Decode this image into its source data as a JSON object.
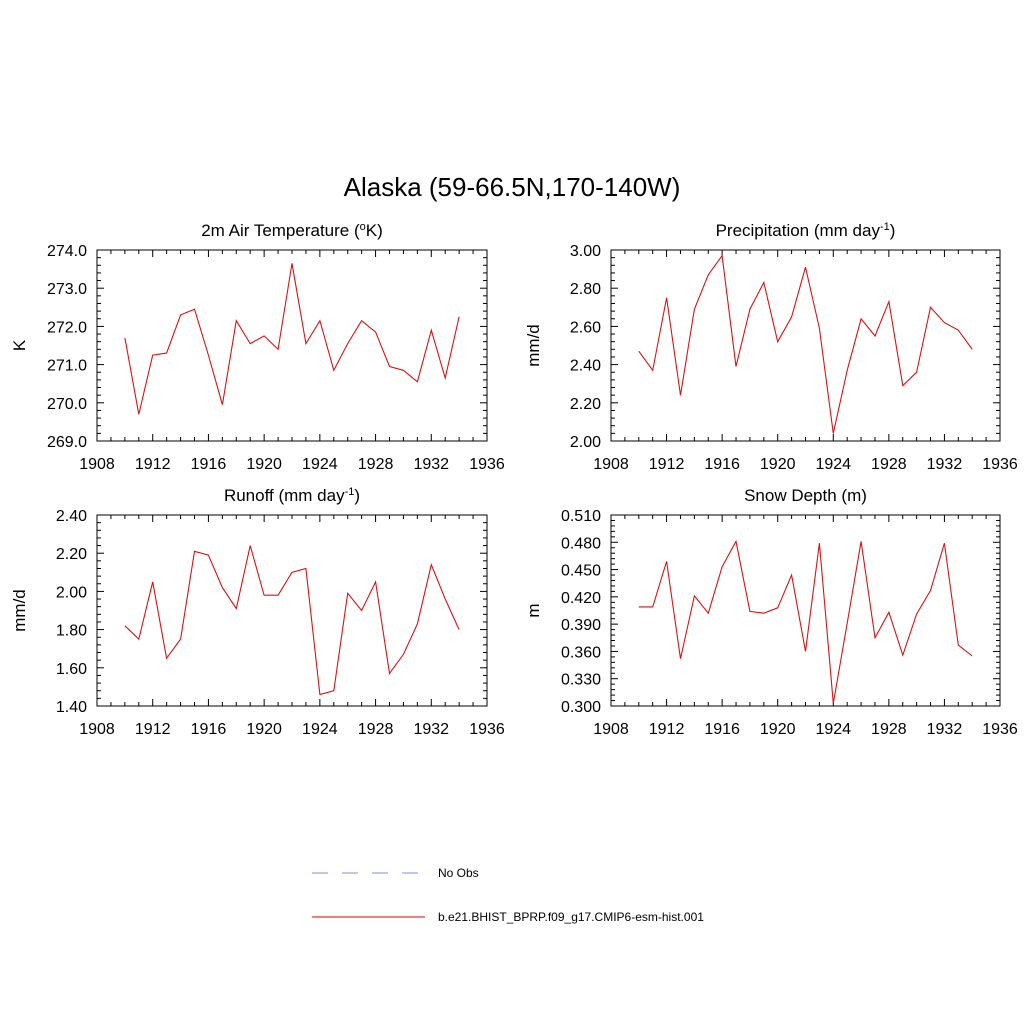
{
  "figure": {
    "title": "Alaska (59-66.5N,170-140W)"
  },
  "legend": {
    "entries": [
      {
        "label": "No Obs",
        "color": "#a0a0e8",
        "style": "dashed"
      },
      {
        "label": "b.e21.BHIST_BPRP.f09_g17.CMIP6-esm-hist.001",
        "color": "#ee3030",
        "style": "solid"
      }
    ]
  },
  "colors": {
    "series": "#dd1111",
    "axis": "#000000"
  },
  "chart_data": [
    {
      "type": "line",
      "title": "2m Air Temperature (",
      "title_sup": "o",
      "title_after": "K)",
      "title_sup2": "",
      "title_end": "",
      "ylabel": "K",
      "xlim": [
        1908,
        1936
      ],
      "ylim": [
        269.0,
        274.0
      ],
      "xticks": [
        1908,
        1912,
        1916,
        1920,
        1924,
        1928,
        1932,
        1936
      ],
      "xtick_labels": [
        "1908",
        "1912",
        "1916",
        "1920",
        "1924",
        "1928",
        "1932",
        "1936"
      ],
      "yticks": [
        269.0,
        270.0,
        271.0,
        272.0,
        273.0,
        274.0
      ],
      "ytick_labels": [
        "269.0",
        "270.0",
        "271.0",
        "272.0",
        "273.0",
        "274.0"
      ],
      "x": [
        1910,
        1911,
        1912,
        1913,
        1914,
        1915,
        1916,
        1917,
        1918,
        1919,
        1920,
        1921,
        1922,
        1923,
        1924,
        1925,
        1926,
        1927,
        1928,
        1929,
        1930,
        1931,
        1932,
        1933,
        1934
      ],
      "series": [
        {
          "name": "b.e21.BHIST_BPRP.f09_g17.CMIP6-esm-hist.001",
          "values": [
            271.7,
            269.7,
            271.25,
            271.3,
            272.3,
            272.45,
            271.25,
            269.95,
            272.15,
            271.55,
            271.75,
            271.4,
            273.65,
            271.55,
            272.15,
            270.85,
            271.55,
            272.15,
            271.85,
            270.95,
            270.85,
            270.55,
            271.9,
            270.65,
            272.25
          ]
        }
      ]
    },
    {
      "type": "line",
      "title": "Precipitation (mm day",
      "title_sup": "-1",
      "title_after": ")",
      "title_sup2": "",
      "title_end": "",
      "ylabel": "mm/d",
      "xlim": [
        1908,
        1936
      ],
      "ylim": [
        2.0,
        3.0
      ],
      "xticks": [
        1908,
        1912,
        1916,
        1920,
        1924,
        1928,
        1932,
        1936
      ],
      "xtick_labels": [
        "1908",
        "1912",
        "1916",
        "1920",
        "1924",
        "1928",
        "1932",
        "1936"
      ],
      "yticks": [
        2.0,
        2.2,
        2.4,
        2.6,
        2.8,
        3.0
      ],
      "ytick_labels": [
        "2.00",
        "2.20",
        "2.40",
        "2.60",
        "2.80",
        "3.00"
      ],
      "x": [
        1910,
        1911,
        1912,
        1913,
        1914,
        1915,
        1916,
        1917,
        1918,
        1919,
        1920,
        1921,
        1922,
        1923,
        1924,
        1925,
        1926,
        1927,
        1928,
        1929,
        1930,
        1931,
        1932,
        1933,
        1934
      ],
      "series": [
        {
          "name": "b.e21.BHIST_BPRP.f09_g17.CMIP6-esm-hist.001",
          "values": [
            2.47,
            2.37,
            2.75,
            2.24,
            2.69,
            2.87,
            2.97,
            2.39,
            2.69,
            2.83,
            2.52,
            2.65,
            2.91,
            2.59,
            2.04,
            2.37,
            2.64,
            2.55,
            2.73,
            2.29,
            2.36,
            2.7,
            2.62,
            2.58,
            2.48
          ]
        }
      ]
    },
    {
      "type": "line",
      "title": "Runoff (mm day",
      "title_sup": "-1",
      "title_after": ")",
      "title_sup2": "",
      "title_end": "",
      "ylabel": "mm/d",
      "xlim": [
        1908,
        1936
      ],
      "ylim": [
        1.4,
        2.4
      ],
      "xticks": [
        1908,
        1912,
        1916,
        1920,
        1924,
        1928,
        1932,
        1936
      ],
      "xtick_labels": [
        "1908",
        "1912",
        "1916",
        "1920",
        "1924",
        "1928",
        "1932",
        "1936"
      ],
      "yticks": [
        1.4,
        1.6,
        1.8,
        2.0,
        2.2,
        2.4
      ],
      "ytick_labels": [
        "1.40",
        "1.60",
        "1.80",
        "2.00",
        "2.20",
        "2.40"
      ],
      "x": [
        1910,
        1911,
        1912,
        1913,
        1914,
        1915,
        1916,
        1917,
        1918,
        1919,
        1920,
        1921,
        1922,
        1923,
        1924,
        1925,
        1926,
        1927,
        1928,
        1929,
        1930,
        1931,
        1932,
        1933,
        1934
      ],
      "series": [
        {
          "name": "b.e21.BHIST_BPRP.f09_g17.CMIP6-esm-hist.001",
          "values": [
            1.82,
            1.75,
            2.05,
            1.65,
            1.75,
            2.21,
            2.19,
            2.02,
            1.91,
            2.24,
            1.98,
            1.98,
            2.1,
            2.12,
            1.46,
            1.48,
            1.99,
            1.9,
            2.05,
            1.57,
            1.67,
            1.83,
            2.14,
            1.96,
            1.8
          ]
        }
      ]
    },
    {
      "type": "line",
      "title": "Snow Depth (m)",
      "title_sup": "",
      "title_after": "",
      "title_sup2": "",
      "title_end": "",
      "ylabel": "m",
      "xlim": [
        1908,
        1936
      ],
      "ylim": [
        0.3,
        0.51
      ],
      "xticks": [
        1908,
        1912,
        1916,
        1920,
        1924,
        1928,
        1932,
        1936
      ],
      "xtick_labels": [
        "1908",
        "1912",
        "1916",
        "1920",
        "1924",
        "1928",
        "1932",
        "1936"
      ],
      "yticks": [
        0.3,
        0.33,
        0.36,
        0.39,
        0.42,
        0.45,
        0.48,
        0.51
      ],
      "ytick_labels": [
        "0.300",
        "0.330",
        "0.360",
        "0.390",
        "0.420",
        "0.450",
        "0.480",
        "0.510"
      ],
      "x": [
        1910,
        1911,
        1912,
        1913,
        1914,
        1915,
        1916,
        1917,
        1918,
        1919,
        1920,
        1921,
        1922,
        1923,
        1924,
        1925,
        1926,
        1927,
        1928,
        1929,
        1930,
        1931,
        1932,
        1933,
        1934
      ],
      "series": [
        {
          "name": "b.e21.BHIST_BPRP.f09_g17.CMIP6-esm-hist.001",
          "values": [
            0.409,
            0.409,
            0.459,
            0.352,
            0.421,
            0.402,
            0.453,
            0.481,
            0.404,
            0.402,
            0.408,
            0.444,
            0.36,
            0.479,
            0.303,
            0.391,
            0.481,
            0.375,
            0.403,
            0.356,
            0.401,
            0.427,
            0.479,
            0.367,
            0.355
          ]
        }
      ]
    }
  ]
}
